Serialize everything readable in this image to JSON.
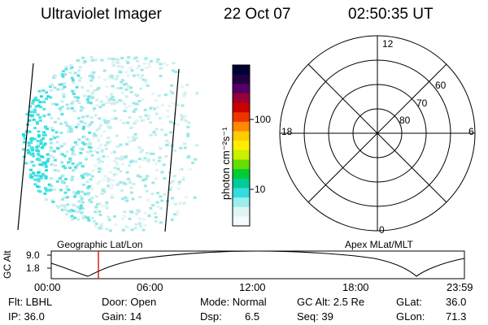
{
  "header": {
    "instrument": "Ultraviolet Imager",
    "date": "22 Oct 07",
    "time": "02:50:35 UT"
  },
  "colorbar": {
    "unit_label": "photon cm⁻²s⁻¹",
    "ticks": [
      "100",
      "10"
    ],
    "colors": [
      "#000033",
      "#220044",
      "#550066",
      "#990033",
      "#cc0000",
      "#ee3300",
      "#ff8800",
      "#ffcc00",
      "#ffee00",
      "#ccee00",
      "#66dd00",
      "#00cc33",
      "#00cc99",
      "#33dddd",
      "#99eeee",
      "#ddf5f5",
      "#f4fbfb"
    ]
  },
  "left_panel": {
    "caption": "Geographic Lat/Lon",
    "dot_colors": [
      "#22dddd",
      "#55e0e0",
      "#99e8e8",
      "#c8eeee",
      "#e4f4f4"
    ]
  },
  "polar_plot": {
    "caption": "Apex MLat/MLT",
    "mlt_labels": {
      "top": "12",
      "bottom": "0",
      "left": "18",
      "right": "6"
    },
    "mlat_labels": [
      "60",
      "70",
      "80"
    ]
  },
  "altitude_strip": {
    "y_axis_label": "GC Alt",
    "y_ticks": [
      "9.0",
      "1.8"
    ],
    "x_ticks": [
      "00:00",
      "06:00",
      "12:00",
      "18:00",
      "23:59"
    ],
    "marker_color": "#cc0000"
  },
  "params": {
    "flt": "Flt: LBHL",
    "ip": "IP: 36.0",
    "door": "Door: Open",
    "gain": "Gain: 14",
    "mode": "Mode: Normal",
    "dsp_label": "Dsp:",
    "dsp_value": "6.5",
    "gc_alt": "GC Alt: 2.5 Re",
    "seq": "Seq: 39",
    "glat_label": "GLat:",
    "glat_value": "36.0",
    "glon_label": "GLon:",
    "glon_value": "71.3"
  }
}
